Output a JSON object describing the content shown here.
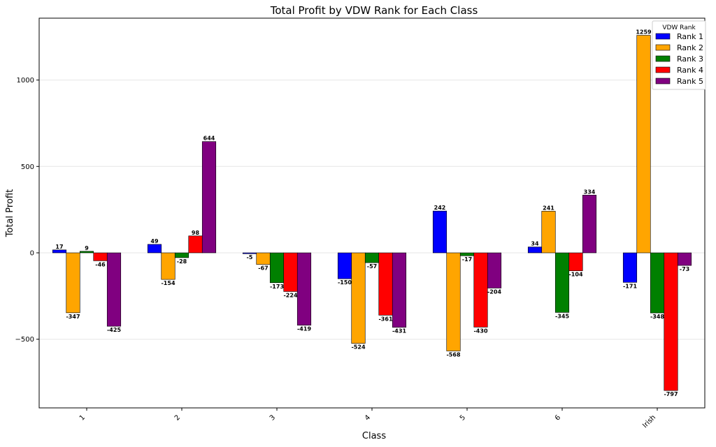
{
  "chart_data": {
    "type": "bar",
    "title": "Total Profit by VDW Rank for Each Class",
    "xlabel": "Class",
    "ylabel": "Total Profit",
    "categories": [
      "1",
      "2",
      "3",
      "4",
      "5",
      "6",
      "Irish"
    ],
    "ylim": [
      -900,
      1360
    ],
    "yticks": [
      -500,
      0,
      500,
      1000
    ],
    "grid": true,
    "legend": {
      "title": "VDW Rank",
      "position": "top-right"
    },
    "series": [
      {
        "name": "Rank 1",
        "color": "#0000ff",
        "values": [
          17,
          49,
          -5,
          -150,
          242,
          34,
          -171
        ]
      },
      {
        "name": "Rank 2",
        "color": "#ffa500",
        "values": [
          -347,
          -154,
          -67,
          -524,
          -568,
          241,
          1259
        ]
      },
      {
        "name": "Rank 3",
        "color": "#008000",
        "values": [
          9,
          -28,
          -173,
          -57,
          -17,
          -345,
          -348
        ]
      },
      {
        "name": "Rank 4",
        "color": "#ff0000",
        "values": [
          -46,
          98,
          -224,
          -361,
          -430,
          -104,
          -797
        ]
      },
      {
        "name": "Rank 5",
        "color": "#800080",
        "values": [
          -425,
          644,
          -419,
          -431,
          -204,
          334,
          -73
        ]
      }
    ]
  }
}
